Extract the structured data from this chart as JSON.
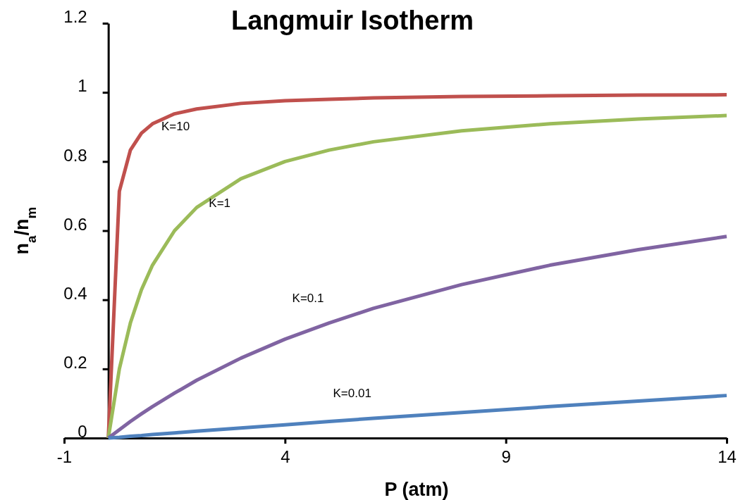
{
  "chart_data": {
    "type": "line",
    "title": "Langmuir Isotherm",
    "xlabel": "P (atm)",
    "ylabel": "n$_{a}$/n$_{m}$",
    "x": [
      0,
      0.25,
      0.5,
      0.75,
      1,
      1.5,
      2,
      3,
      4,
      5,
      6,
      8,
      10,
      12,
      14
    ],
    "series": [
      {
        "name": "K=10",
        "color": "#c0504d",
        "values": [
          0,
          0.714,
          0.833,
          0.882,
          0.909,
          0.938,
          0.952,
          0.968,
          0.976,
          0.98,
          0.984,
          0.988,
          0.99,
          0.992,
          0.993
        ]
      },
      {
        "name": "K=1",
        "color": "#9bbb59",
        "values": [
          0,
          0.2,
          0.333,
          0.429,
          0.5,
          0.6,
          0.667,
          0.75,
          0.8,
          0.833,
          0.857,
          0.889,
          0.909,
          0.923,
          0.933
        ]
      },
      {
        "name": "K=0.1",
        "color": "#8064a2",
        "values": [
          0,
          0.024,
          0.048,
          0.07,
          0.091,
          0.13,
          0.167,
          0.231,
          0.286,
          0.333,
          0.375,
          0.444,
          0.5,
          0.545,
          0.583
        ]
      },
      {
        "name": "K=0.01",
        "color": "#4f81bd",
        "values": [
          0,
          0.002,
          0.005,
          0.007,
          0.01,
          0.015,
          0.02,
          0.029,
          0.038,
          0.048,
          0.057,
          0.074,
          0.091,
          0.107,
          0.123
        ]
      }
    ],
    "xlim": [
      -1,
      14
    ],
    "ylim": [
      0,
      1.2
    ],
    "xticks": [
      -1,
      4,
      9,
      14
    ],
    "yticks": [
      0,
      0.2,
      0.4,
      0.6,
      0.8,
      1,
      1.2
    ],
    "grid": false,
    "marker": "none",
    "line_style": "solid"
  }
}
